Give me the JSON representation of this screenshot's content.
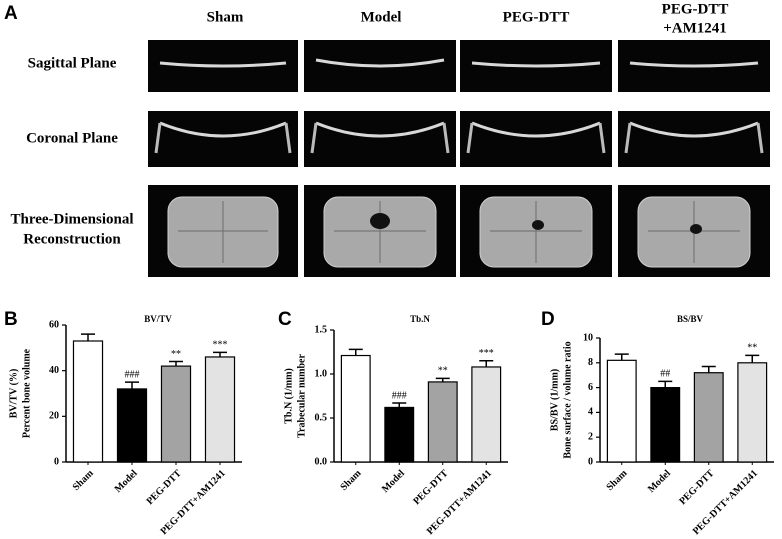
{
  "panel_a": {
    "letter": "A",
    "columns": [
      [
        "Sham"
      ],
      [
        "Model"
      ],
      [
        "PEG-DTT"
      ],
      [
        "PEG-DTT",
        "+AM1241"
      ]
    ],
    "rows": [
      [
        "Sagittal Plane"
      ],
      [
        "Coronal Plane"
      ],
      [
        "Three-Dimensional",
        "Reconstruction"
      ]
    ]
  },
  "chart_data": [
    {
      "type": "bar",
      "letter": "B",
      "title": "BV/TV",
      "y_label": [
        "BV/TV (%)",
        "Percent bone volume"
      ],
      "categories": [
        "Sham",
        "Model",
        "PEG-DTT",
        "PEG-DTT+AM1241"
      ],
      "values": [
        53,
        32,
        42,
        46
      ],
      "errors": [
        3,
        3,
        2,
        2
      ],
      "annotations": [
        null,
        "###",
        "**",
        "***"
      ],
      "colors": [
        "#ffffff",
        "#000000",
        "#a3a3a3",
        "#e3e3e3"
      ],
      "ylim": [
        0,
        60
      ],
      "yticks": [
        0,
        20,
        40,
        60
      ]
    },
    {
      "type": "bar",
      "letter": "C",
      "title": "Tb.N",
      "y_label": [
        "Tb.N (1/mm)",
        "Trabecular number"
      ],
      "categories": [
        "Sham",
        "Model",
        "PEG-DTT",
        "PEG-DTT+AM1241"
      ],
      "values": [
        1.21,
        0.62,
        0.91,
        1.08
      ],
      "errors": [
        0.07,
        0.05,
        0.04,
        0.07
      ],
      "annotations": [
        null,
        "###",
        "**",
        "***"
      ],
      "colors": [
        "#ffffff",
        "#000000",
        "#a3a3a3",
        "#e3e3e3"
      ],
      "ylim": [
        0,
        1.5
      ],
      "yticks": [
        {
          "value": 0,
          "label": "0.0"
        },
        0.5,
        {
          "value": 1,
          "label": "1.0"
        },
        1.5
      ]
    },
    {
      "type": "bar",
      "letter": "D",
      "title": "BS/BV",
      "y_label": [
        "BS/BV (1/mm)",
        "Bone surface / volume ratio"
      ],
      "categories": [
        "Sham",
        "Model",
        "PEG-DTT",
        "PEG-DTT+AM1241"
      ],
      "values": [
        8.2,
        6.0,
        7.2,
        8.0
      ],
      "errors": [
        0.5,
        0.5,
        0.5,
        0.6
      ],
      "annotations": [
        null,
        "##",
        null,
        "**"
      ],
      "colors": [
        "#ffffff",
        "#000000",
        "#a3a3a3",
        "#e3e3e3"
      ],
      "ylim": [
        0,
        10
      ],
      "yticks": [
        0,
        2,
        4,
        6,
        8,
        10
      ]
    }
  ]
}
